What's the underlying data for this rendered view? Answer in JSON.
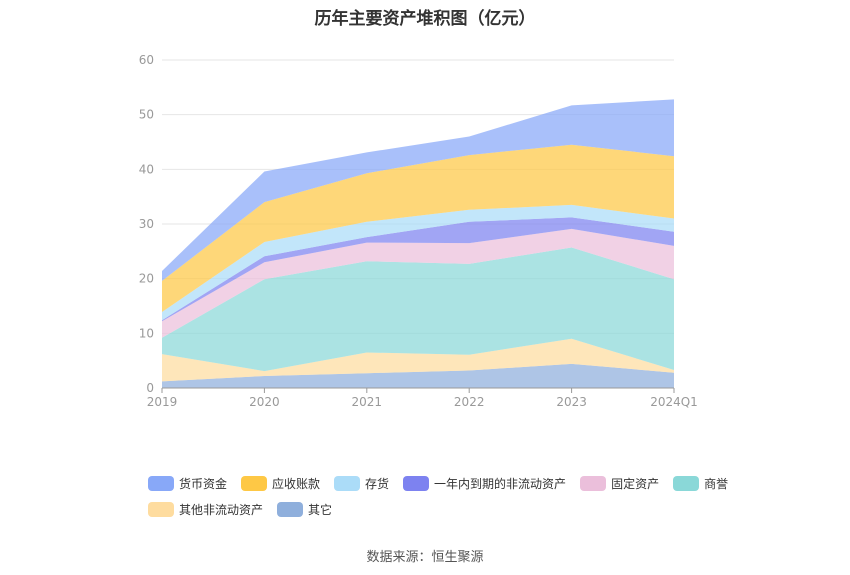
{
  "title": "历年主要资产堆积图（亿元）",
  "source": "数据来源：恒生聚源",
  "chart_data": {
    "type": "area",
    "stacked": true,
    "title": "历年主要资产堆积图（亿元）",
    "xlabel": "",
    "ylabel": "",
    "categories": [
      "2019",
      "2020",
      "2021",
      "2022",
      "2023",
      "2024Q1"
    ],
    "ylim": [
      0,
      60
    ],
    "yticks": [
      0,
      10,
      20,
      30,
      40,
      50,
      60
    ],
    "grid": true,
    "legend_position": "bottom",
    "series": [
      {
        "name": "其它",
        "color": "#8fafdc",
        "values": [
          1.2,
          2.2,
          2.7,
          3.2,
          4.4,
          2.8
        ]
      },
      {
        "name": "其他非流动资产",
        "color": "#fedc9f",
        "values": [
          5.0,
          0.9,
          3.8,
          2.9,
          4.6,
          0.5
        ]
      },
      {
        "name": "商誉",
        "color": "#8ad8d8",
        "values": [
          3.0,
          16.8,
          16.7,
          16.6,
          16.7,
          16.6
        ]
      },
      {
        "name": "固定资产",
        "color": "#ebbfdb",
        "values": [
          3.0,
          3.1,
          3.4,
          3.8,
          3.4,
          6.1
        ]
      },
      {
        "name": "一年内到期的非流动资产",
        "color": "#7d82f0",
        "values": [
          0.2,
          1.1,
          1.0,
          3.9,
          2.1,
          2.6
        ]
      },
      {
        "name": "存货",
        "color": "#abdcf8",
        "values": [
          1.5,
          2.6,
          2.8,
          2.2,
          2.3,
          2.4
        ]
      },
      {
        "name": "应收账款",
        "color": "#fec845",
        "values": [
          5.7,
          7.3,
          8.9,
          10.0,
          11.0,
          11.4
        ]
      },
      {
        "name": "货币资金",
        "color": "#88a8f8",
        "values": [
          1.8,
          5.6,
          3.8,
          3.4,
          7.2,
          10.4
        ]
      }
    ],
    "legend_order": [
      "货币资金",
      "应收账款",
      "存货",
      "一年内到期的非流动资产",
      "固定资产",
      "商誉",
      "其他非流动资产",
      "其它"
    ]
  }
}
